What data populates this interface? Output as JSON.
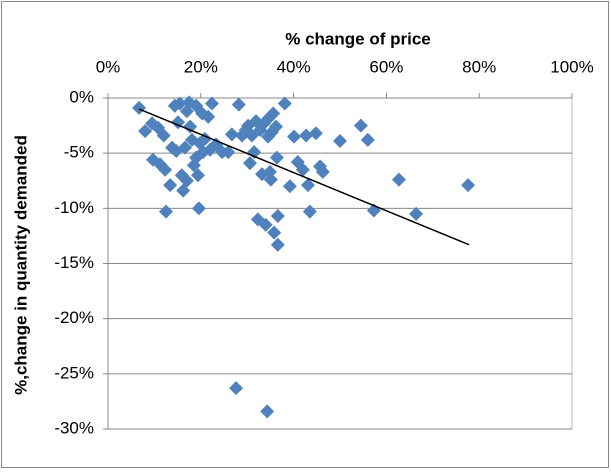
{
  "chart_data": {
    "type": "scatter",
    "x_label": "% change of price",
    "y_label": "%,change in quantity demanded",
    "x": [
      6.7,
      8,
      9.5,
      9.7,
      10.8,
      11.2,
      12,
      12.3,
      12.5,
      13.4,
      13.8,
      14.4,
      14.7,
      15.1,
      15.5,
      15.9,
      16.2,
      16.6,
      17,
      17,
      17.5,
      17.7,
      18.1,
      18.5,
      19,
      19,
      19.4,
      19.6,
      19.8,
      20.3,
      20.5,
      20.9,
      21.6,
      22,
      22.4,
      23.3,
      24.6,
      25.9,
      26.7,
      27.6,
      28.2,
      28.9,
      29.7,
      30.2,
      30.6,
      31,
      31.5,
      31.9,
      32.3,
      32.8,
      33.2,
      33.6,
      34,
      34.3,
      34.5,
      34.7,
      34.9,
      35.1,
      35.3,
      35.6,
      35.8,
      36.2,
      36.4,
      36.6,
      36.6,
      38.1,
      39.2,
      40.1,
      40.9,
      42,
      42.7,
      43.1,
      43.5,
      44.8,
      45.7,
      46.3,
      50,
      54.5,
      56,
      57.3,
      62.7,
      66.4,
      77.6
    ],
    "values": [
      -0.9,
      -3,
      -2.3,
      -5.6,
      -2.7,
      -6,
      -3.4,
      -6.5,
      -10.3,
      -7.9,
      -4.5,
      -0.7,
      -4.8,
      -2.2,
      -0.5,
      -7,
      -8.4,
      -4.5,
      -7.5,
      -1.2,
      -0.4,
      -2.6,
      -3.8,
      -6.1,
      -5.4,
      -0.7,
      -7,
      -10,
      -4.1,
      -1.4,
      -4.9,
      -3.7,
      -1.7,
      -4.7,
      -0.5,
      -4.2,
      -4.9,
      -4.9,
      -3.3,
      -26.3,
      -0.6,
      -3.4,
      -2.9,
      -2.5,
      -5.9,
      -3.4,
      -4.9,
      -2.1,
      -11,
      -2.9,
      -6.9,
      -2.3,
      -11.5,
      -28.4,
      -3.5,
      -1.8,
      -6.7,
      -7.4,
      -3.1,
      -1.4,
      -12.2,
      -2.6,
      -5.4,
      -10.7,
      -13.3,
      -0.5,
      -8,
      -3.5,
      -5.8,
      -6.5,
      -3.4,
      -7.9,
      -10.3,
      -3.2,
      -6.2,
      -6.7,
      -3.9,
      -2.5,
      -3.8,
      -10.2,
      -7.4,
      -10.5,
      -7.9
    ],
    "color": "#4f81bd",
    "trendline": {
      "x": [
        6.7,
        77.8
      ],
      "values": [
        -1,
        -13.3
      ],
      "color": "#000000"
    },
    "xlim": [
      0,
      100
    ],
    "xticks": [
      {
        "value": 0,
        "label": "0%"
      },
      {
        "value": 20,
        "label": "20%"
      },
      {
        "value": 40,
        "label": "40%"
      },
      {
        "value": 60,
        "label": "60%"
      },
      {
        "value": 80,
        "label": "80%"
      },
      {
        "value": 100,
        "label": "100%"
      }
    ],
    "ylim": [
      -30,
      0
    ],
    "yticks": [
      {
        "value": 0,
        "label": "0%"
      },
      {
        "value": -5,
        "label": "-5%"
      },
      {
        "value": -10,
        "label": "-10%"
      },
      {
        "value": -15,
        "label": "-15%"
      },
      {
        "value": -20,
        "label": "-20%"
      },
      {
        "value": -25,
        "label": "-25%"
      },
      {
        "value": -30,
        "label": "-30%"
      }
    ],
    "grid": true
  }
}
